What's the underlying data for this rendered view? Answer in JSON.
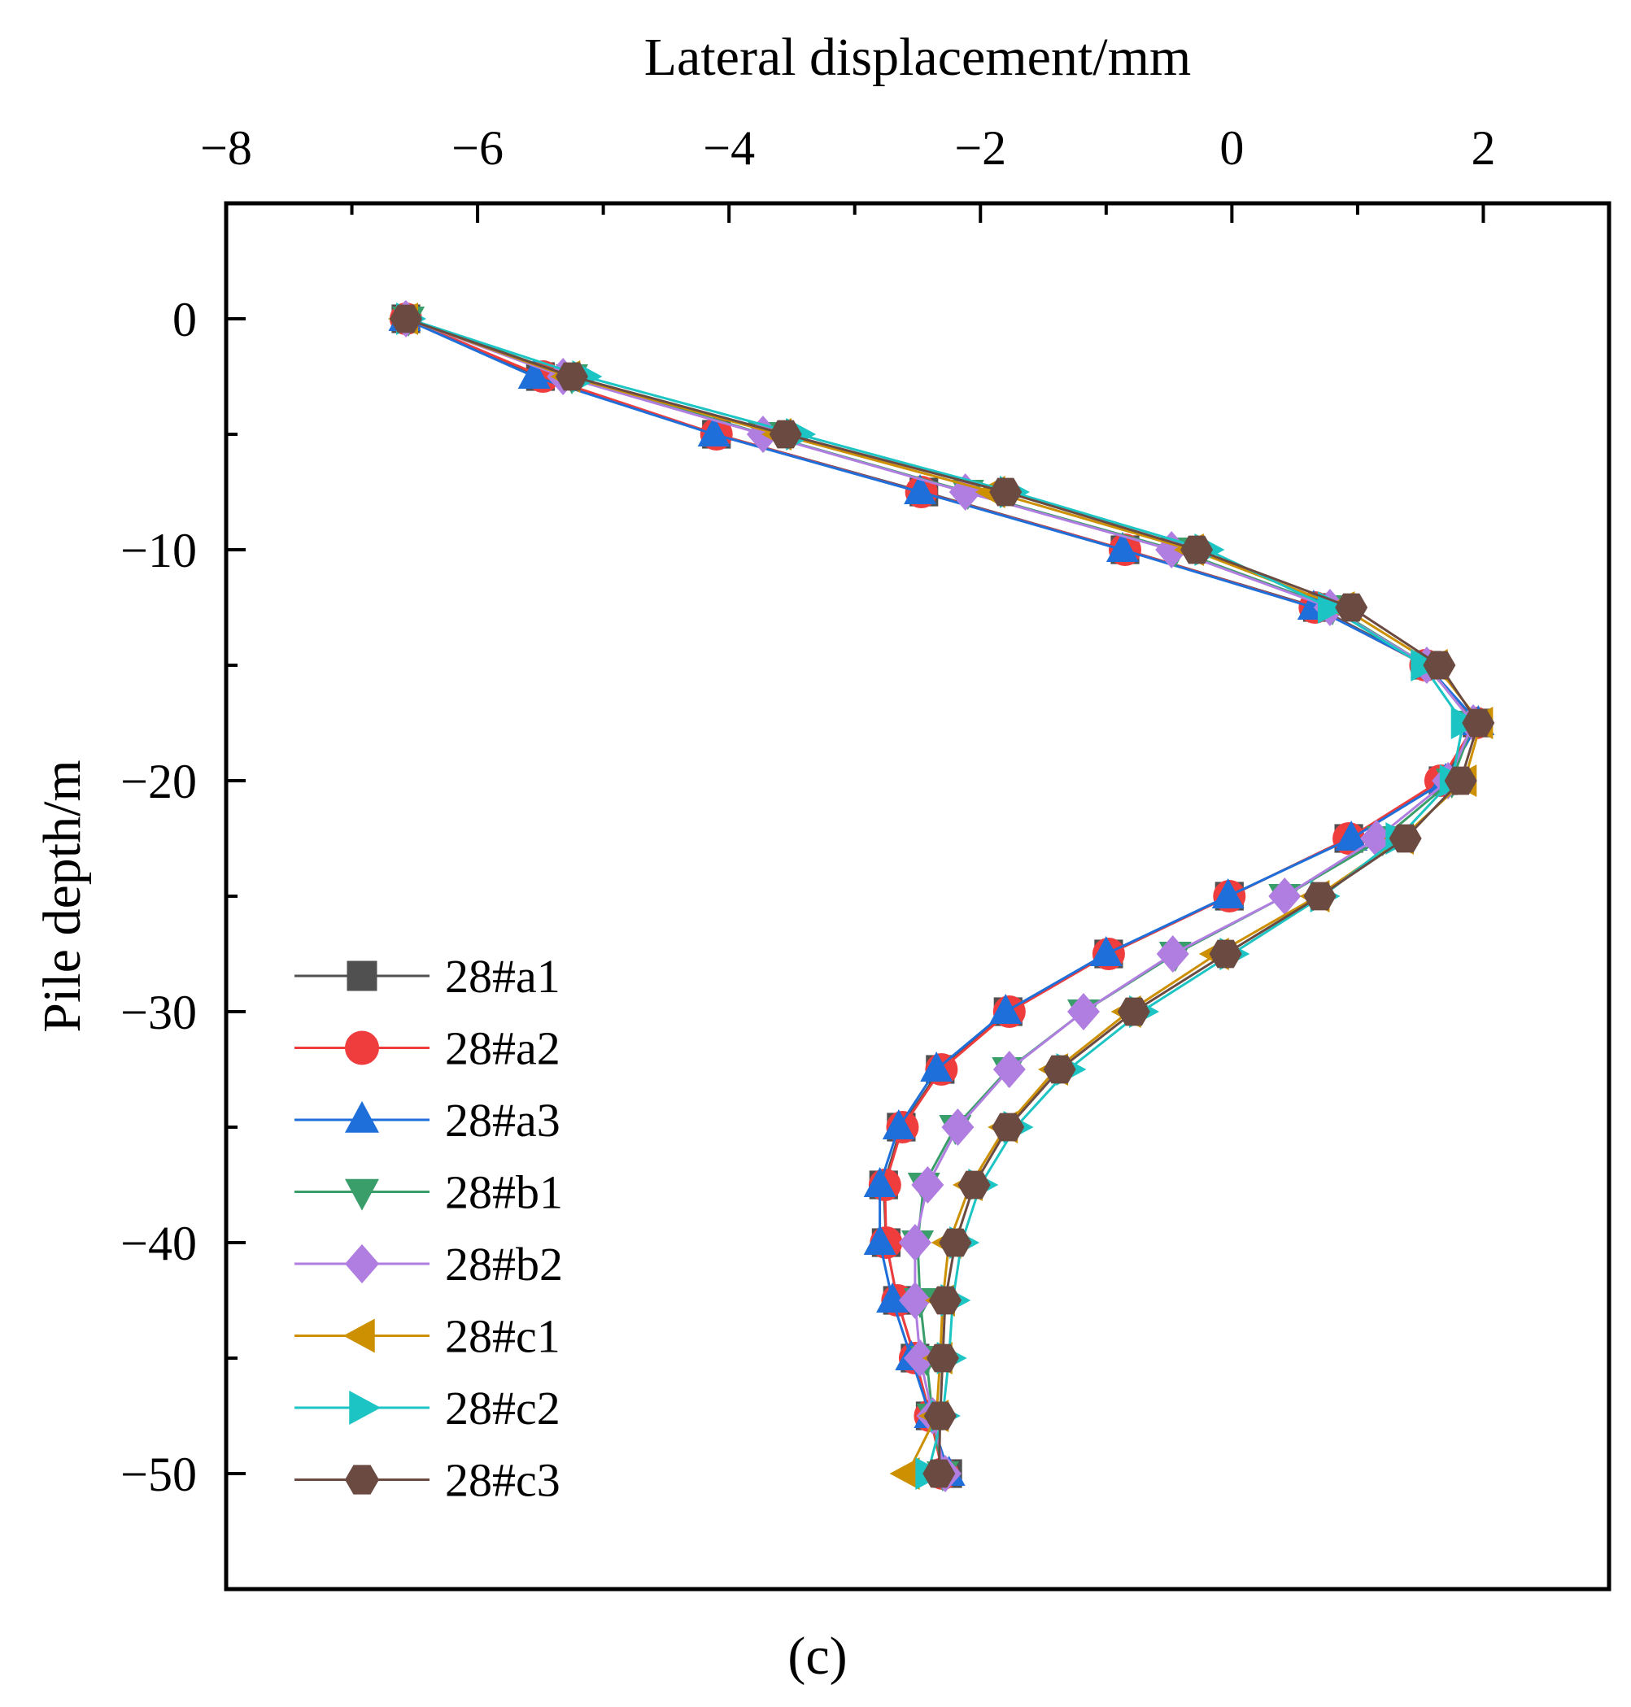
{
  "chart_data": {
    "type": "line",
    "xlabel": "Lateral displacement/mm",
    "ylabel": "Pile depth/m",
    "panel_label": "(c)",
    "xlim": [
      -8,
      3
    ],
    "ylim": [
      -55,
      5
    ],
    "x_ticks": [
      -8,
      -6,
      -4,
      -2,
      0,
      2
    ],
    "x_tick_labels": [
      "−8",
      "−6",
      "−4",
      "−2",
      "0",
      "2"
    ],
    "y_ticks": [
      0,
      -10,
      -20,
      -30,
      -40,
      -50
    ],
    "y_tick_labels": [
      "0",
      "−10",
      "−20",
      "−30",
      "−40",
      "−50"
    ],
    "x_minor_step": 1,
    "y_minor_step": 5,
    "x_axis_position": "top",
    "legend_position": "bottom-left",
    "depths": [
      0,
      -2.5,
      -5,
      -7.5,
      -10,
      -12.5,
      -15,
      -17.5,
      -20,
      -22.5,
      -25,
      -27.5,
      -30,
      -32.5,
      -35,
      -37.5,
      -40,
      -42.5,
      -45,
      -47.5,
      -50
    ],
    "series": [
      {
        "name": "28#a1",
        "color": "#505050",
        "marker": "square",
        "x": [
          -6.57,
          -5.5,
          -4.1,
          -2.45,
          -0.85,
          0.68,
          1.55,
          1.95,
          1.68,
          0.93,
          -0.02,
          -0.98,
          -1.78,
          -2.32,
          -2.63,
          -2.77,
          -2.75,
          -2.66,
          -2.52,
          -2.4,
          -2.26
        ]
      },
      {
        "name": "28#a2",
        "color": "#ef3c3c",
        "marker": "circle",
        "x": [
          -6.57,
          -5.48,
          -4.1,
          -2.47,
          -0.85,
          0.66,
          1.54,
          1.94,
          1.66,
          0.93,
          -0.02,
          -0.98,
          -1.77,
          -2.31,
          -2.62,
          -2.76,
          -2.75,
          -2.66,
          -2.52,
          -2.4,
          -2.3
        ]
      },
      {
        "name": "28#a3",
        "color": "#1e6fd9",
        "marker": "triangle-up",
        "x": [
          -6.58,
          -5.55,
          -4.12,
          -2.48,
          -0.87,
          0.65,
          1.55,
          1.96,
          1.7,
          0.95,
          -0.03,
          -1.0,
          -1.8,
          -2.35,
          -2.65,
          -2.8,
          -2.8,
          -2.7,
          -2.55,
          -2.4,
          -2.25
        ]
      },
      {
        "name": "28#b1",
        "color": "#3a9e6a",
        "marker": "triangle-down",
        "x": [
          -6.55,
          -5.25,
          -3.72,
          -2.1,
          -0.45,
          0.8,
          1.55,
          1.92,
          1.75,
          1.2,
          0.42,
          -0.45,
          -1.18,
          -1.78,
          -2.2,
          -2.45,
          -2.5,
          -2.48,
          -2.43,
          -2.38,
          -2.3
        ]
      },
      {
        "name": "28#b2",
        "color": "#b07ee0",
        "marker": "diamond",
        "x": [
          -6.57,
          -5.32,
          -3.73,
          -2.12,
          -0.48,
          0.78,
          1.55,
          1.92,
          1.72,
          1.15,
          0.42,
          -0.47,
          -1.18,
          -1.77,
          -2.18,
          -2.42,
          -2.52,
          -2.52,
          -2.48,
          -2.38,
          -2.28
        ]
      },
      {
        "name": "28#c1",
        "color": "#cc9000",
        "marker": "triangle-left",
        "x": [
          -6.57,
          -5.28,
          -3.6,
          -1.9,
          -0.32,
          0.88,
          1.62,
          1.98,
          1.85,
          1.35,
          0.68,
          -0.12,
          -0.82,
          -1.4,
          -1.8,
          -2.08,
          -2.25,
          -2.3,
          -2.32,
          -2.35,
          -2.58
        ]
      },
      {
        "name": "28#c2",
        "color": "#1dc4c4",
        "marker": "triangle-right",
        "x": [
          -6.55,
          -5.15,
          -3.45,
          -1.75,
          -0.2,
          0.78,
          1.52,
          1.84,
          1.75,
          1.32,
          0.72,
          0.0,
          -0.72,
          -1.3,
          -1.72,
          -2.0,
          -2.15,
          -2.22,
          -2.25,
          -2.3,
          -2.42
        ]
      },
      {
        "name": "28#c3",
        "color": "#6b4a42",
        "marker": "hexagon",
        "x": [
          -6.57,
          -5.25,
          -3.55,
          -1.8,
          -0.28,
          0.95,
          1.65,
          1.96,
          1.82,
          1.38,
          0.7,
          -0.05,
          -0.78,
          -1.37,
          -1.78,
          -2.05,
          -2.2,
          -2.28,
          -2.3,
          -2.32,
          -2.33
        ]
      }
    ]
  }
}
